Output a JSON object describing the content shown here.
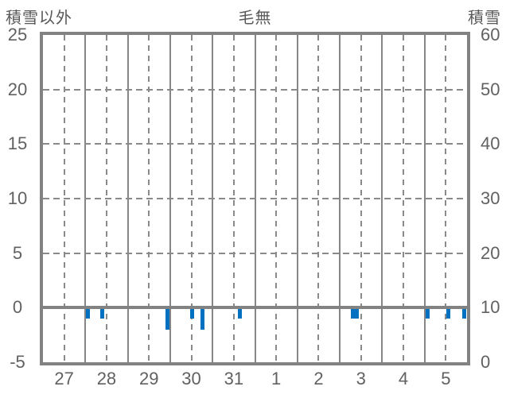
{
  "chart_data": {
    "type": "bar",
    "title": "毛無",
    "left_axis": {
      "title": "積雪以外",
      "ticks": [
        "25",
        "20",
        "15",
        "10",
        "5",
        "0",
        "-5"
      ],
      "min": -5,
      "max": 25
    },
    "right_axis": {
      "title": "積雪",
      "ticks": [
        "60",
        "50",
        "40",
        "30",
        "20",
        "10",
        "0"
      ],
      "min": 0,
      "max": 60
    },
    "x_categories": [
      "27",
      "28",
      "29",
      "30",
      "31",
      "1",
      "2",
      "3",
      "4",
      "5"
    ],
    "grid": {
      "vertical_solid_at_day_boundaries": true,
      "vertical_dashed_at_day_centers": true,
      "horizontal_dashed_at": [
        20,
        15,
        10,
        5
      ],
      "thick_line_at": 0
    },
    "bars": [
      {
        "day": "28",
        "x_frac": 0.106,
        "value": -1
      },
      {
        "day": "28",
        "x_frac": 0.14,
        "value": -1
      },
      {
        "day": "29",
        "x_frac": 0.294,
        "value": -2
      },
      {
        "day": "30",
        "x_frac": 0.352,
        "value": -1
      },
      {
        "day": "30",
        "x_frac": 0.376,
        "value": -2
      },
      {
        "day": "31",
        "x_frac": 0.465,
        "value": -1
      },
      {
        "day": "3",
        "x_frac": 0.73,
        "value": -1
      },
      {
        "day": "3",
        "x_frac": 0.741,
        "value": -1
      },
      {
        "day": "5",
        "x_frac": 0.907,
        "value": -1
      },
      {
        "day": "5",
        "x_frac": 0.955,
        "value": -1
      },
      {
        "day": "5",
        "x_frac": 0.993,
        "value": -1
      }
    ],
    "colors": {
      "bar": "#0070c0",
      "grid": "#828282",
      "text": "#616161",
      "header_text": "#595959"
    }
  }
}
